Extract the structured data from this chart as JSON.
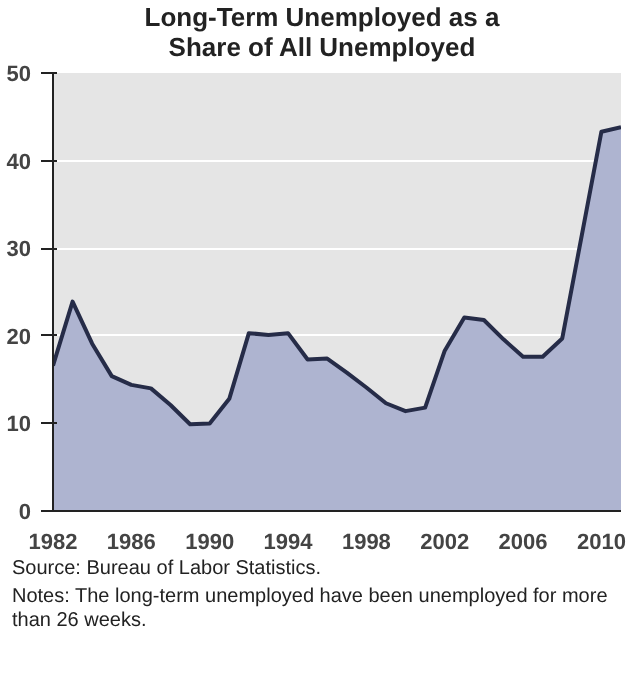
{
  "chart_data": {
    "type": "area",
    "title": "Long-Term Unemployed as a Share of All Unemployed",
    "x": [
      1982,
      1983,
      1984,
      1985,
      1986,
      1987,
      1988,
      1989,
      1990,
      1991,
      1992,
      1993,
      1994,
      1995,
      1996,
      1997,
      1998,
      1999,
      2000,
      2001,
      2002,
      2003,
      2004,
      2005,
      2006,
      2007,
      2008,
      2009,
      2010,
      2011
    ],
    "series": [
      {
        "color": "#aeb4d0",
        "values": [
          16.6,
          23.9,
          19.1,
          15.4,
          14.4,
          14.0,
          12.1,
          9.9,
          10.0,
          12.8,
          20.3,
          20.1,
          20.3,
          17.3,
          17.4,
          15.8,
          14.1,
          12.3,
          11.4,
          11.8,
          18.3,
          22.1,
          21.8,
          19.6,
          17.6,
          17.6,
          19.7,
          31.5,
          43.3,
          43.8
        ]
      }
    ],
    "xlim": [
      1982,
      2011
    ],
    "ylim": [
      0,
      50
    ],
    "xticks": [
      1982,
      1986,
      1990,
      1994,
      1998,
      2002,
      2006,
      2010
    ],
    "yticks": [
      0,
      10,
      20,
      30,
      40,
      50
    ],
    "grid": "y",
    "annotations": [
      "Source:  Bureau of Labor Statistics.",
      "Notes:  The long-term unemployed have been unemployed for more than 26 weeks."
    ]
  }
}
